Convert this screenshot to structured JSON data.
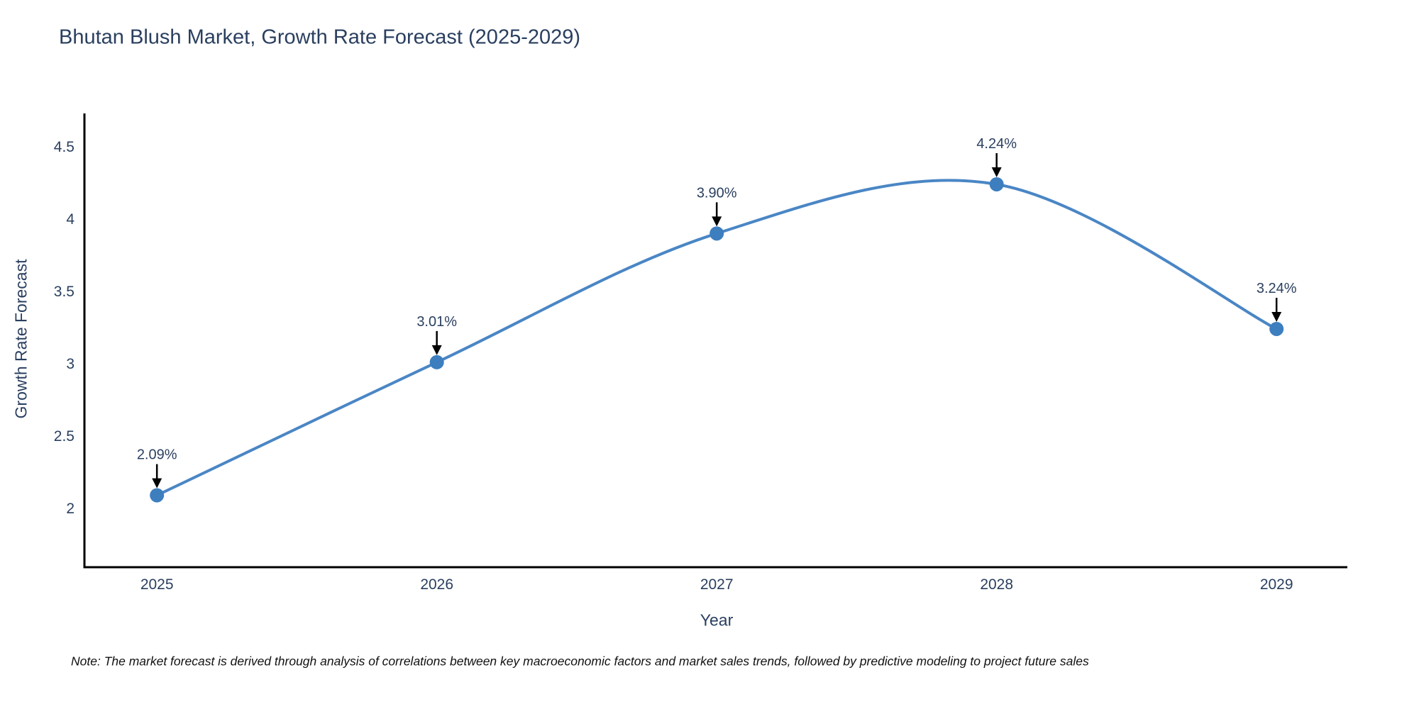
{
  "title": "Bhutan Blush Market, Growth Rate Forecast (2025-2029)",
  "note": "Note: The market forecast is derived through analysis of correlations between key macroeconomic factors and market sales trends, followed by predictive modeling to project future sales",
  "chart_data": {
    "type": "line",
    "line_shape": "spline",
    "title": "Bhutan Blush Market, Growth Rate Forecast (2025-2029)",
    "xlabel": "Year",
    "ylabel": "Growth Rate Forecast",
    "x": [
      2025,
      2026,
      2027,
      2028,
      2029
    ],
    "values": [
      2.09,
      3.01,
      3.9,
      4.24,
      3.24
    ],
    "point_labels": [
      "2.09%",
      "3.01%",
      "3.90%",
      "4.24%",
      "3.24%"
    ],
    "yticks": [
      2,
      2.5,
      3,
      3.5,
      4,
      4.5
    ],
    "xlim": [
      2024.741,
      2029.253
    ],
    "ylim": [
      1.593,
      4.73
    ],
    "grid": false,
    "legend": "none",
    "markers": true,
    "annotations_arrow": true,
    "colors": {
      "line": "#4a86c5",
      "marker": "#3d7ebf",
      "axis": "#000000",
      "text": "#2a3f5f",
      "annotation_arrow": "#000000",
      "note_text": "#111111",
      "background": "#ffffff"
    }
  }
}
